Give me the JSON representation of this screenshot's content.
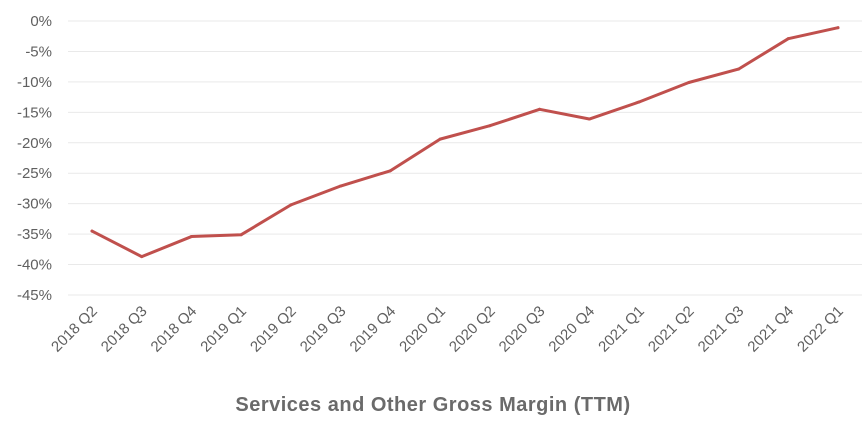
{
  "chart_data": {
    "type": "line",
    "title": "Services and Other Gross Margin (TTM)",
    "xlabel": "",
    "ylabel": "",
    "categories": [
      "2018 Q2",
      "2018 Q3",
      "2018 Q4",
      "2019 Q1",
      "2019 Q2",
      "2019 Q3",
      "2019 Q4",
      "2020 Q1",
      "2020 Q2",
      "2020 Q3",
      "2020 Q4",
      "2021 Q1",
      "2021 Q2",
      "2021 Q3",
      "2021 Q4",
      "2022 Q1"
    ],
    "series": [
      {
        "values": [
          -34.5,
          -38.7,
          -35.4,
          -35.1,
          -30.2,
          -27.1,
          -24.6,
          -19.4,
          -17.2,
          -14.5,
          -16.1,
          -13.3,
          -10.1,
          -7.9,
          -2.9,
          -1.1
        ],
        "color": "#c0504d"
      }
    ],
    "ylim": [
      -45,
      0
    ],
    "yticks": [
      0,
      -5,
      -10,
      -15,
      -20,
      -25,
      -30,
      -35,
      -40,
      -45
    ],
    "ytick_labels": [
      "0%",
      "-5%",
      "-10%",
      "-15%",
      "-20%",
      "-25%",
      "-30%",
      "-35%",
      "-40%",
      "-45%"
    ],
    "grid": true,
    "legend": "none"
  }
}
